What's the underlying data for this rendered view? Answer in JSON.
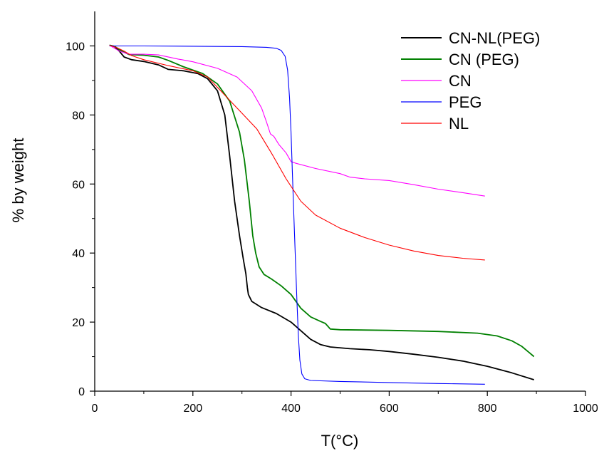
{
  "chart_data": {
    "type": "line",
    "title": "",
    "xlabel": "T(°C)",
    "ylabel": "% by weight",
    "xlim": [
      0,
      1000
    ],
    "ylim": [
      0,
      110
    ],
    "xticks": [
      0,
      200,
      400,
      600,
      800,
      1000
    ],
    "yticks": [
      0,
      20,
      40,
      60,
      80,
      100
    ],
    "x_tick_labels": [
      "0",
      "200",
      "400",
      "600",
      "800",
      "1000"
    ],
    "y_tick_labels": [
      "0",
      "20",
      "40",
      "60",
      "80",
      "100"
    ],
    "grid": false,
    "legend_position": "top-right",
    "series": [
      {
        "name": "CN-NL(PEG)",
        "color": "#000000",
        "points": [
          [
            30,
            100.2
          ],
          [
            40,
            99.8
          ],
          [
            50,
            98.5
          ],
          [
            60,
            96.8
          ],
          [
            75,
            96
          ],
          [
            100,
            95.5
          ],
          [
            130,
            94.5
          ],
          [
            150,
            93.2
          ],
          [
            180,
            92.8
          ],
          [
            210,
            92
          ],
          [
            230,
            90.5
          ],
          [
            250,
            87
          ],
          [
            265,
            80
          ],
          [
            275,
            68
          ],
          [
            285,
            55
          ],
          [
            295,
            45
          ],
          [
            303,
            38
          ],
          [
            308,
            34
          ],
          [
            311,
            30
          ],
          [
            313,
            28
          ],
          [
            320,
            26
          ],
          [
            340,
            24.2
          ],
          [
            370,
            22.5
          ],
          [
            400,
            20
          ],
          [
            420,
            17.5
          ],
          [
            440,
            15
          ],
          [
            460,
            13.5
          ],
          [
            480,
            12.8
          ],
          [
            520,
            12.3
          ],
          [
            560,
            12
          ],
          [
            600,
            11.5
          ],
          [
            650,
            10.7
          ],
          [
            700,
            9.8
          ],
          [
            750,
            8.7
          ],
          [
            800,
            7.2
          ],
          [
            850,
            5.3
          ],
          [
            895,
            3.3
          ]
        ]
      },
      {
        "name": "CN (PEG)",
        "color": "#008000",
        "points": [
          [
            30,
            100.2
          ],
          [
            40,
            99.9
          ],
          [
            55,
            98.5
          ],
          [
            70,
            97.5
          ],
          [
            100,
            97.3
          ],
          [
            130,
            96.8
          ],
          [
            150,
            95.8
          ],
          [
            180,
            94
          ],
          [
            220,
            92
          ],
          [
            250,
            89
          ],
          [
            275,
            84
          ],
          [
            295,
            75
          ],
          [
            305,
            67
          ],
          [
            315,
            55
          ],
          [
            322,
            45
          ],
          [
            328,
            40
          ],
          [
            335,
            36
          ],
          [
            345,
            33.8
          ],
          [
            360,
            32.5
          ],
          [
            380,
            30.5
          ],
          [
            400,
            28
          ],
          [
            420,
            24
          ],
          [
            440,
            21.5
          ],
          [
            460,
            20.2
          ],
          [
            470,
            19.6
          ],
          [
            475,
            18.8
          ],
          [
            480,
            18
          ],
          [
            500,
            17.8
          ],
          [
            600,
            17.6
          ],
          [
            700,
            17.3
          ],
          [
            780,
            16.8
          ],
          [
            820,
            16
          ],
          [
            850,
            14.6
          ],
          [
            870,
            13
          ],
          [
            885,
            11.2
          ],
          [
            895,
            10
          ]
        ]
      },
      {
        "name": "CN",
        "color": "#ff00ff",
        "points": [
          [
            30,
            100.2
          ],
          [
            50,
            98.5
          ],
          [
            70,
            97.6
          ],
          [
            100,
            97.6
          ],
          [
            130,
            97.4
          ],
          [
            170,
            96.2
          ],
          [
            200,
            95.4
          ],
          [
            250,
            93.5
          ],
          [
            290,
            91
          ],
          [
            320,
            87
          ],
          [
            340,
            82
          ],
          [
            350,
            78
          ],
          [
            358,
            74.5
          ],
          [
            365,
            73.8
          ],
          [
            375,
            71.5
          ],
          [
            390,
            69
          ],
          [
            400,
            66.5
          ],
          [
            410,
            66
          ],
          [
            450,
            64.5
          ],
          [
            500,
            63
          ],
          [
            520,
            62
          ],
          [
            550,
            61.5
          ],
          [
            600,
            61
          ],
          [
            650,
            59.8
          ],
          [
            700,
            58.5
          ],
          [
            750,
            57.5
          ],
          [
            795,
            56.5
          ]
        ]
      },
      {
        "name": "PEG",
        "color": "#0000ff",
        "points": [
          [
            30,
            100
          ],
          [
            100,
            100
          ],
          [
            200,
            99.9
          ],
          [
            300,
            99.8
          ],
          [
            350,
            99.6
          ],
          [
            370,
            99.3
          ],
          [
            380,
            98.7
          ],
          [
            388,
            97
          ],
          [
            393,
            93
          ],
          [
            397,
            85
          ],
          [
            400,
            75
          ],
          [
            403,
            62
          ],
          [
            406,
            50
          ],
          [
            409,
            38
          ],
          [
            412,
            26
          ],
          [
            415,
            16
          ],
          [
            418,
            9
          ],
          [
            422,
            5
          ],
          [
            428,
            3.6
          ],
          [
            440,
            3.1
          ],
          [
            500,
            2.8
          ],
          [
            600,
            2.5
          ],
          [
            700,
            2.2
          ],
          [
            795,
            2
          ]
        ]
      },
      {
        "name": "NL",
        "color": "#ff0000",
        "points": [
          [
            30,
            100.2
          ],
          [
            45,
            99.5
          ],
          [
            60,
            98.5
          ],
          [
            75,
            97.2
          ],
          [
            100,
            96
          ],
          [
            150,
            94.3
          ],
          [
            200,
            92.8
          ],
          [
            230,
            91
          ],
          [
            250,
            88
          ],
          [
            270,
            85
          ],
          [
            300,
            80.5
          ],
          [
            330,
            76
          ],
          [
            360,
            69
          ],
          [
            390,
            61.5
          ],
          [
            420,
            55
          ],
          [
            450,
            51
          ],
          [
            500,
            47.2
          ],
          [
            550,
            44.5
          ],
          [
            600,
            42.3
          ],
          [
            650,
            40.6
          ],
          [
            700,
            39.3
          ],
          [
            750,
            38.5
          ],
          [
            795,
            38
          ]
        ]
      }
    ]
  }
}
